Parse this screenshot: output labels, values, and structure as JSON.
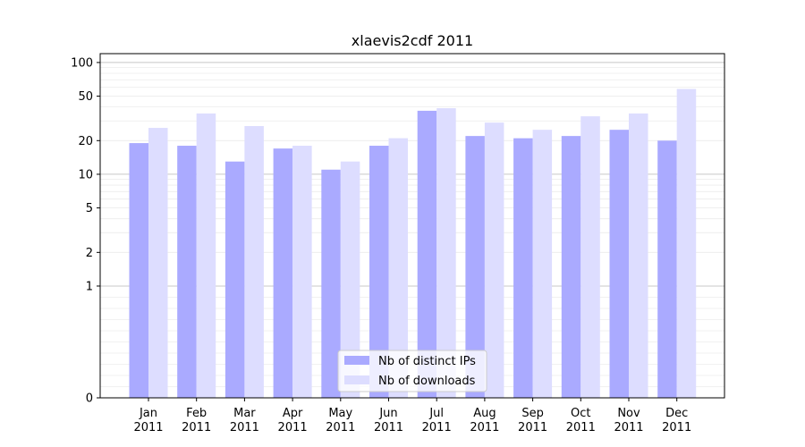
{
  "chart_data": {
    "type": "bar",
    "title": "xlaevis2cdf 2011",
    "xlabel": "",
    "ylabel": "",
    "y_scale": "symlog",
    "ylim": [
      0,
      120
    ],
    "y_ticks": [
      0,
      1,
      2,
      5,
      10,
      20,
      50,
      100
    ],
    "grid": "horizontal",
    "legend_position": "bottom-center",
    "categories": [
      {
        "month": "Jan",
        "year": "2011"
      },
      {
        "month": "Feb",
        "year": "2011"
      },
      {
        "month": "Mar",
        "year": "2011"
      },
      {
        "month": "Apr",
        "year": "2011"
      },
      {
        "month": "May",
        "year": "2011"
      },
      {
        "month": "Jun",
        "year": "2011"
      },
      {
        "month": "Jul",
        "year": "2011"
      },
      {
        "month": "Aug",
        "year": "2011"
      },
      {
        "month": "Sep",
        "year": "2011"
      },
      {
        "month": "Oct",
        "year": "2011"
      },
      {
        "month": "Nov",
        "year": "2011"
      },
      {
        "month": "Dec",
        "year": "2011"
      }
    ],
    "series": [
      {
        "name": "Nb of distinct IPs",
        "color": "#aaaaff",
        "values": [
          19,
          18,
          13,
          17,
          11,
          18,
          37,
          22,
          21,
          22,
          25,
          20
        ]
      },
      {
        "name": "Nb of downloads",
        "color": "#ddddff",
        "values": [
          26,
          35,
          27,
          18,
          13,
          21,
          39,
          29,
          25,
          33,
          35,
          58
        ]
      }
    ]
  }
}
